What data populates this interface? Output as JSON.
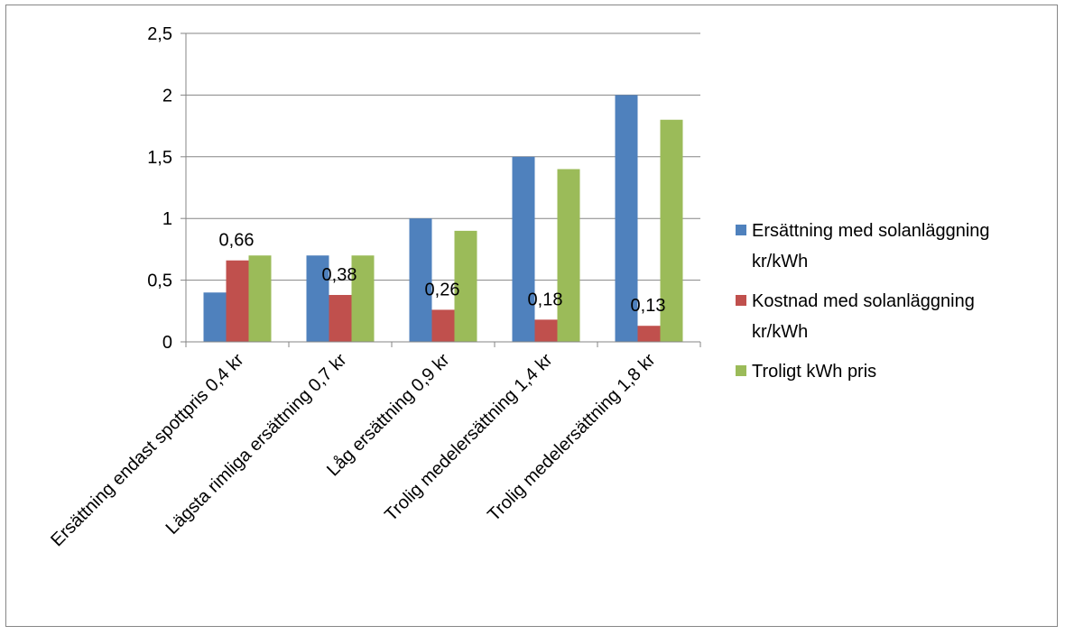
{
  "chart_data": {
    "type": "bar",
    "categories": [
      "Ersättning endast spottpris 0,4 kr",
      "Lägsta rimliga ersättning 0,7 kr",
      "Låg ersättning 0,9 kr",
      "Trolig medelersättning 1,4 kr",
      "Trolig medelersättning 1,8 kr"
    ],
    "series": [
      {
        "name": "Ersättning med solanläggning kr/kWh",
        "name_lines": [
          "Ersättning med solanläggning",
          "kr/kWh"
        ],
        "color": "#4F81BD",
        "values": [
          0.4,
          0.7,
          1.0,
          1.5,
          2.0
        ]
      },
      {
        "name": "Kostnad med solanläggning kr/kWh",
        "name_lines": [
          "Kostnad med solanläggning",
          "kr/kWh"
        ],
        "color": "#C0504D",
        "values": [
          0.66,
          0.38,
          0.26,
          0.18,
          0.13
        ],
        "data_labels": [
          "0,66",
          "0,38",
          "0,26",
          "0,18",
          "0,13"
        ]
      },
      {
        "name": "Troligt kWh pris",
        "name_lines": [
          "Troligt kWh pris"
        ],
        "color": "#9BBB59",
        "values": [
          0.7,
          0.7,
          0.9,
          1.4,
          1.8
        ]
      }
    ],
    "ylim": [
      0,
      2.5
    ],
    "yticks": [
      0,
      0.5,
      1,
      1.5,
      2,
      2.5
    ],
    "ytick_labels": [
      "0",
      "0,5",
      "1",
      "1,5",
      "2",
      "2,5"
    ],
    "grid": true,
    "legend": "right"
  }
}
